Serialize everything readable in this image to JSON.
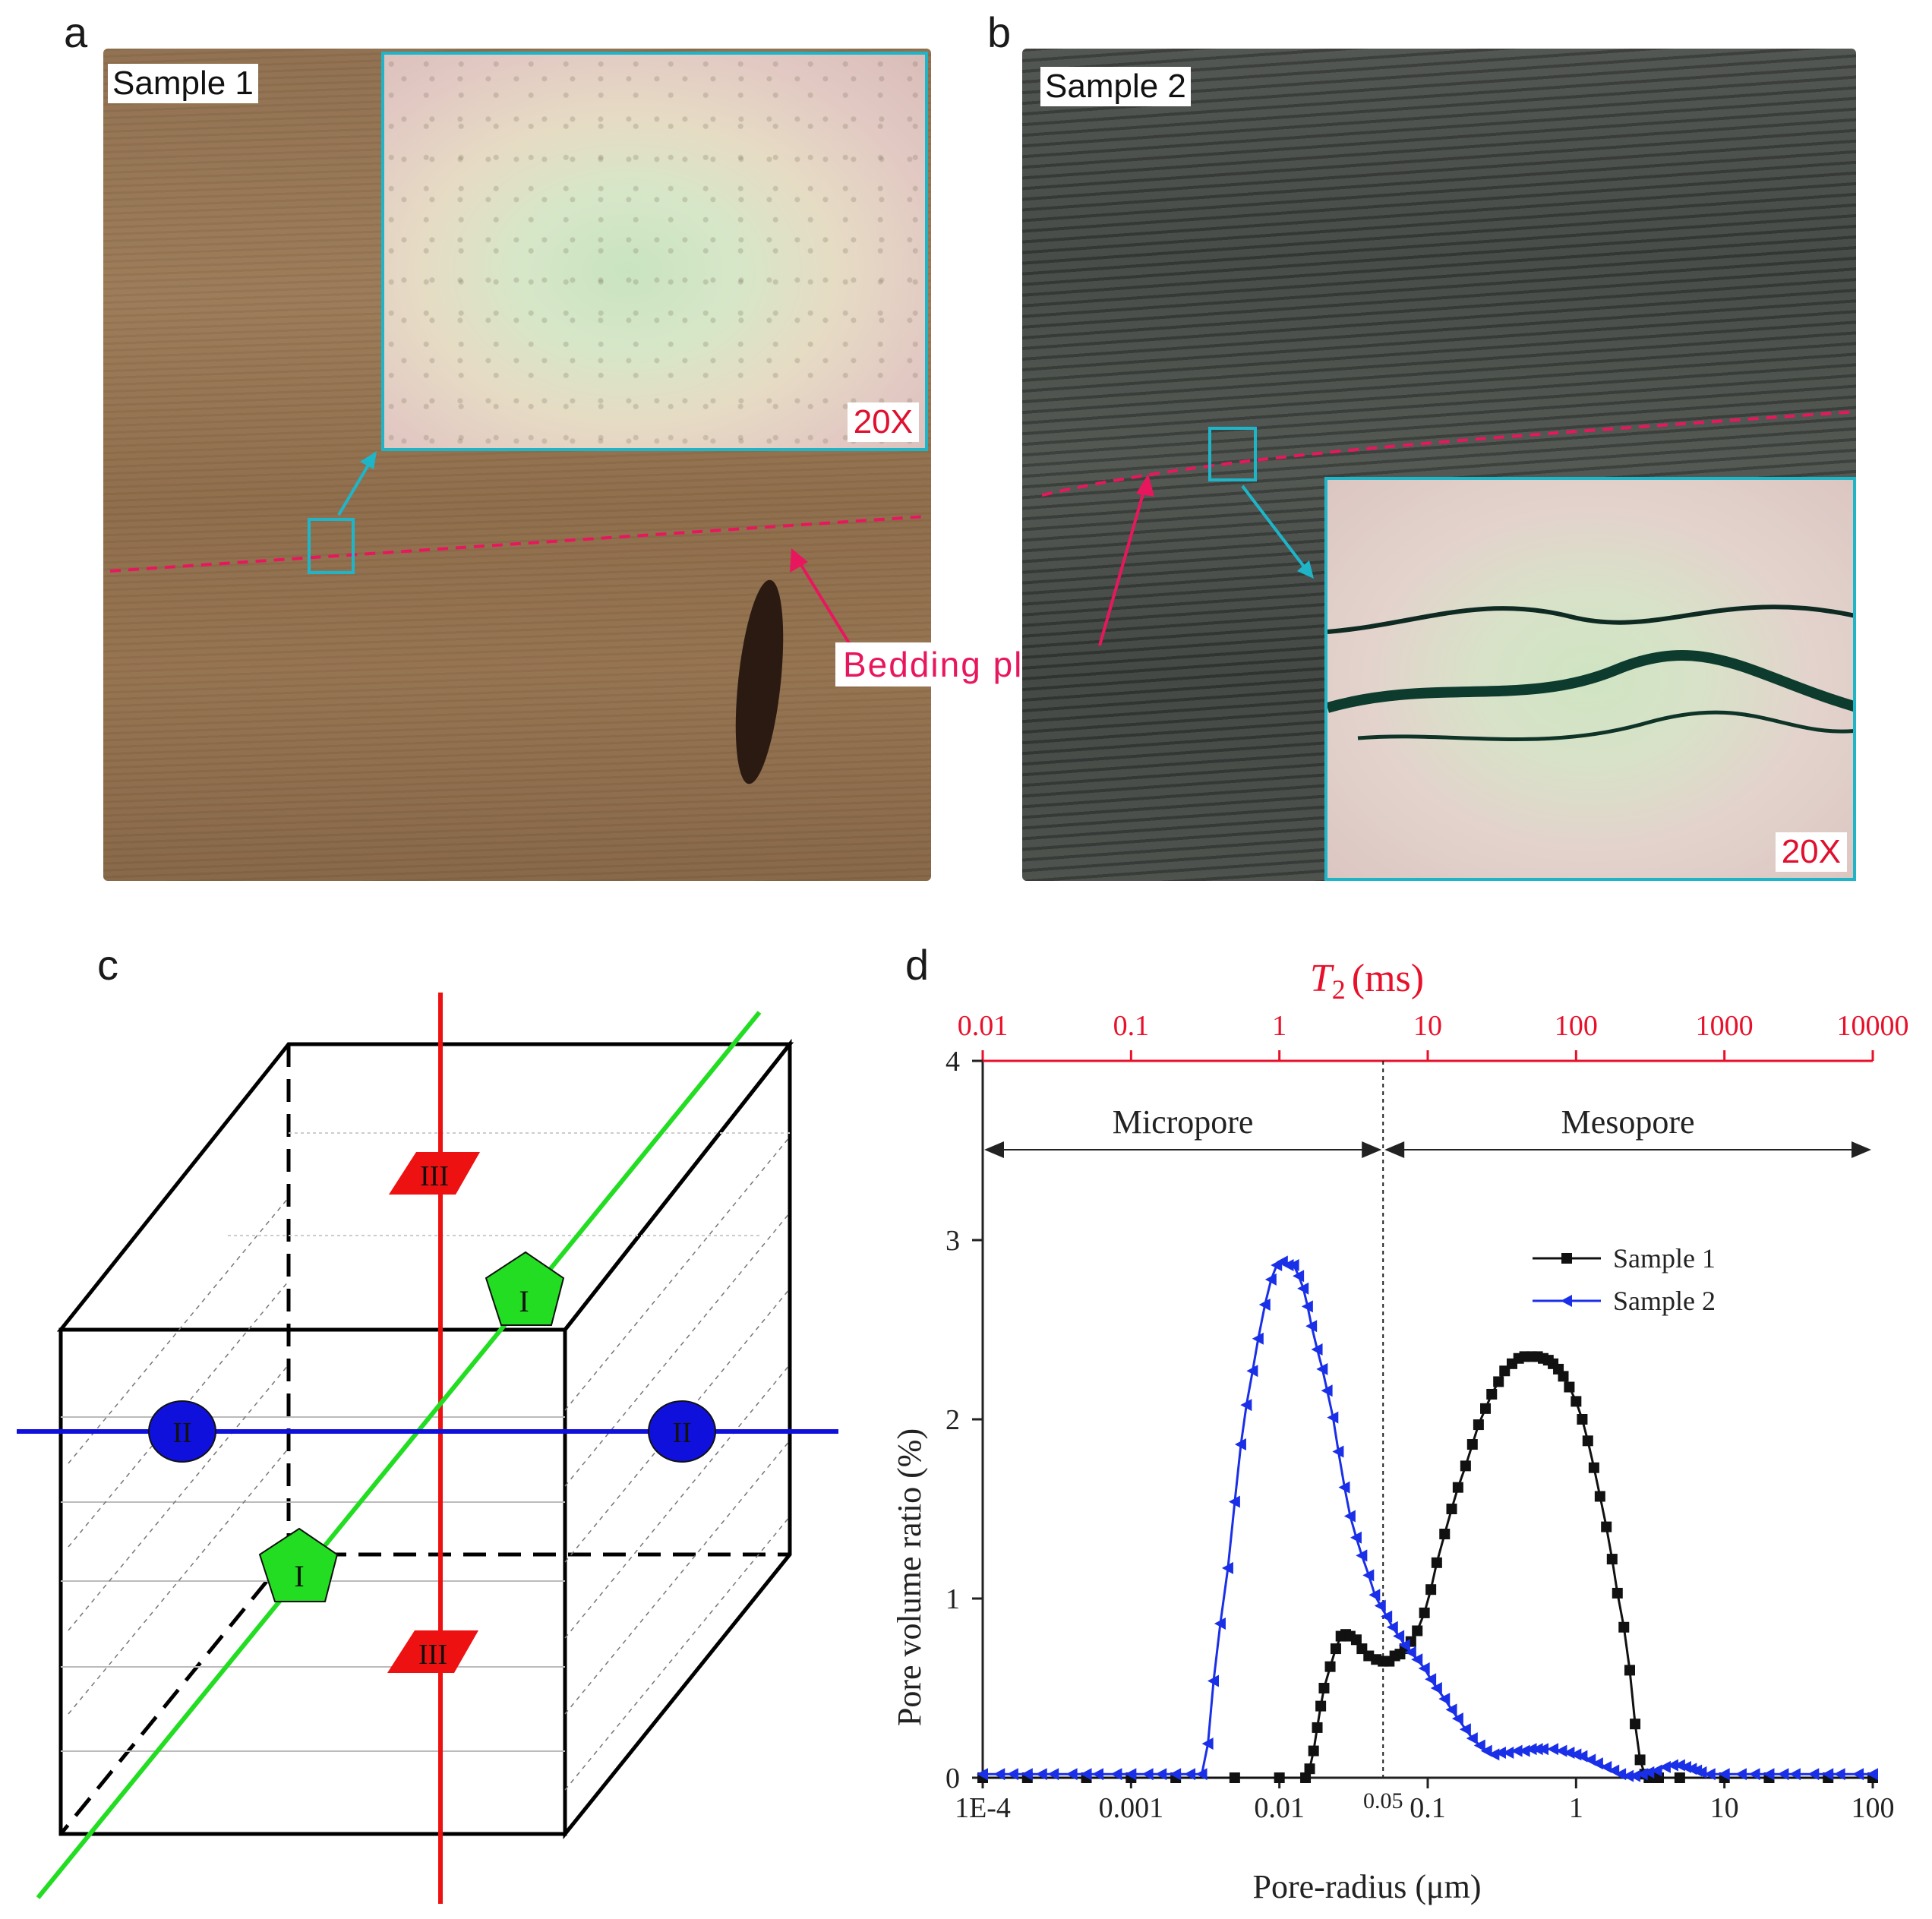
{
  "panels": {
    "a": {
      "letter": "a",
      "sample_label": "Sample 1",
      "magnification": "20X",
      "bedding_label": "Bedding plane"
    },
    "b": {
      "letter": "b",
      "sample_label": "Sample 2",
      "magnification": "20X"
    },
    "c": {
      "letter": "c",
      "plane_labels": {
        "I": "I",
        "II": "II",
        "III": "III"
      },
      "colors": {
        "I": "#22dd22",
        "II": "#1010dd",
        "III": "#ee1111"
      }
    },
    "d": {
      "letter": "d"
    }
  },
  "chart_data": {
    "type": "line",
    "x_scale": "log",
    "xlabel": "Pore-radius (μm)",
    "ylabel": "Pore volume ratio (%)",
    "top_axis_label_italic": "T",
    "top_axis_label_sub": "2",
    "top_axis_label_unit": "(ms)",
    "xlim": [
      0.0001,
      100
    ],
    "ylim": [
      0,
      4
    ],
    "x_ticks": [
      "1E-4",
      "0.001",
      "0.01",
      "0.1",
      "1",
      "10",
      "100"
    ],
    "y_ticks": [
      "0",
      "1",
      "2",
      "3",
      "4"
    ],
    "top_ticks": [
      "0.01",
      "0.1",
      "1",
      "10",
      "100",
      "1000",
      "10000"
    ],
    "divider_x": 0.05,
    "divider_label": "0.05",
    "regions": {
      "left": "Micropore",
      "right": "Mesopore"
    },
    "colors": {
      "sample1": "#111111",
      "sample2": "#1a2fe8",
      "top_axis": "#e8102a"
    },
    "series": [
      {
        "name": "Sample 1",
        "x": [
          0.0001,
          0.0002,
          0.0005,
          0.001,
          0.002,
          0.005,
          0.01,
          0.015,
          0.016,
          0.017,
          0.018,
          0.019,
          0.02,
          0.022,
          0.024,
          0.026,
          0.028,
          0.03,
          0.033,
          0.036,
          0.04,
          0.045,
          0.05,
          0.055,
          0.06,
          0.065,
          0.07,
          0.077,
          0.085,
          0.095,
          0.105,
          0.115,
          0.13,
          0.145,
          0.16,
          0.18,
          0.2,
          0.22,
          0.245,
          0.27,
          0.3,
          0.33,
          0.37,
          0.41,
          0.45,
          0.5,
          0.55,
          0.6,
          0.65,
          0.7,
          0.76,
          0.82,
          0.9,
          1.0,
          1.1,
          1.2,
          1.32,
          1.45,
          1.6,
          1.75,
          1.9,
          2.1,
          2.3,
          2.5,
          2.7,
          2.9,
          3.1,
          3.3,
          3.6,
          5,
          10,
          20,
          50,
          100
        ],
        "y": [
          0,
          0,
          0,
          0,
          0,
          0,
          0,
          0,
          0.05,
          0.15,
          0.28,
          0.4,
          0.5,
          0.62,
          0.72,
          0.79,
          0.8,
          0.79,
          0.77,
          0.72,
          0.68,
          0.66,
          0.65,
          0.65,
          0.68,
          0.69,
          0.72,
          0.76,
          0.82,
          0.92,
          1.05,
          1.2,
          1.36,
          1.5,
          1.62,
          1.74,
          1.86,
          1.97,
          2.06,
          2.14,
          2.21,
          2.27,
          2.31,
          2.34,
          2.35,
          2.35,
          2.35,
          2.34,
          2.33,
          2.31,
          2.28,
          2.24,
          2.18,
          2.1,
          2.0,
          1.88,
          1.73,
          1.57,
          1.4,
          1.22,
          1.03,
          0.84,
          0.6,
          0.3,
          0.1,
          0.02,
          0.0,
          0,
          0,
          0,
          0,
          0,
          0,
          0
        ]
      },
      {
        "name": "Sample 2",
        "x": [
          0.0001,
          0.00013,
          0.00016,
          0.0002,
          0.00025,
          0.0003,
          0.0004,
          0.0005,
          0.0006,
          0.0008,
          0.001,
          0.0013,
          0.0016,
          0.002,
          0.0025,
          0.003,
          0.0033,
          0.0036,
          0.004,
          0.0045,
          0.005,
          0.0055,
          0.006,
          0.0066,
          0.0072,
          0.008,
          0.0088,
          0.0096,
          0.0105,
          0.0115,
          0.0125,
          0.0135,
          0.0145,
          0.0155,
          0.0165,
          0.018,
          0.0195,
          0.021,
          0.023,
          0.025,
          0.0275,
          0.03,
          0.033,
          0.036,
          0.04,
          0.044,
          0.048,
          0.053,
          0.058,
          0.064,
          0.07,
          0.077,
          0.085,
          0.095,
          0.105,
          0.115,
          0.13,
          0.145,
          0.16,
          0.18,
          0.2,
          0.225,
          0.25,
          0.28,
          0.31,
          0.35,
          0.4,
          0.45,
          0.5,
          0.55,
          0.6,
          0.7,
          0.8,
          0.9,
          1.0,
          1.1,
          1.25,
          1.4,
          1.6,
          1.8,
          2.0,
          2.25,
          2.5,
          2.8,
          3.1,
          3.5,
          4.0,
          4.5,
          5.0,
          5.5,
          6.0,
          6.5,
          7.0,
          8.0,
          10,
          13,
          16,
          20,
          25,
          30,
          40,
          50,
          60,
          80,
          100
        ],
        "y": [
          0.02,
          0.02,
          0.02,
          0.02,
          0.02,
          0.02,
          0.02,
          0.02,
          0.02,
          0.02,
          0.02,
          0.02,
          0.02,
          0.02,
          0.02,
          0.02,
          0.19,
          0.54,
          0.86,
          1.17,
          1.54,
          1.86,
          2.08,
          2.27,
          2.45,
          2.64,
          2.78,
          2.86,
          2.88,
          2.86,
          2.86,
          2.8,
          2.73,
          2.63,
          2.52,
          2.39,
          2.28,
          2.16,
          2.01,
          1.82,
          1.62,
          1.46,
          1.34,
          1.24,
          1.13,
          1.02,
          0.96,
          0.9,
          0.84,
          0.79,
          0.74,
          0.7,
          0.66,
          0.61,
          0.55,
          0.5,
          0.44,
          0.38,
          0.33,
          0.27,
          0.22,
          0.18,
          0.15,
          0.13,
          0.14,
          0.14,
          0.15,
          0.15,
          0.16,
          0.16,
          0.16,
          0.16,
          0.15,
          0.14,
          0.13,
          0.12,
          0.1,
          0.08,
          0.06,
          0.04,
          0.02,
          0.01,
          0.01,
          0.02,
          0.03,
          0.04,
          0.06,
          0.07,
          0.07,
          0.06,
          0.05,
          0.04,
          0.03,
          0.02,
          0.02,
          0.02,
          0.02,
          0.02,
          0.02,
          0.02,
          0.02,
          0.02,
          0.02,
          0.02,
          0.02
        ]
      }
    ],
    "legend": {
      "position": "top-right",
      "entries": [
        "Sample 1",
        "Sample 2"
      ]
    }
  }
}
